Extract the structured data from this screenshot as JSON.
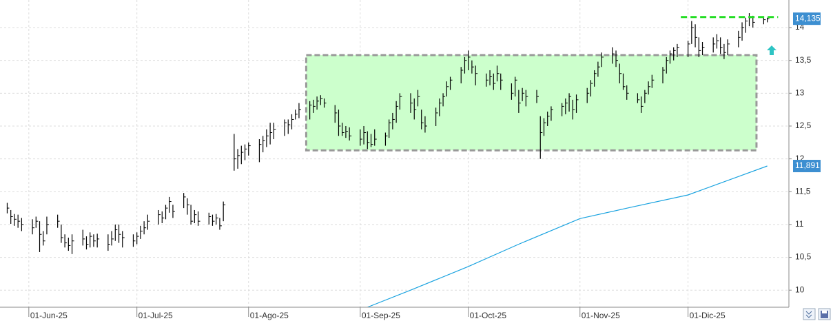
{
  "chart_data": {
    "type": "ohlc",
    "color": "#000000",
    "x": [
      "2025-05-26",
      "2025-05-27",
      "2025-05-28",
      "2025-05-29",
      "2025-05-30",
      "2025-06-02",
      "2025-06-03",
      "2025-06-04",
      "2025-06-05",
      "2025-06-06",
      "2025-06-09",
      "2025-06-10",
      "2025-06-11",
      "2025-06-12",
      "2025-06-13",
      "2025-06-16",
      "2025-06-17",
      "2025-06-18",
      "2025-06-19",
      "2025-06-20",
      "2025-06-23",
      "2025-06-24",
      "2025-06-25",
      "2025-06-26",
      "2025-06-27",
      "2025-06-30",
      "2025-07-01",
      "2025-07-02",
      "2025-07-03",
      "2025-07-04",
      "2025-07-07",
      "2025-07-08",
      "2025-07-09",
      "2025-07-10",
      "2025-07-11",
      "2025-07-14",
      "2025-07-15",
      "2025-07-16",
      "2025-07-17",
      "2025-07-18",
      "2025-07-21",
      "2025-07-22",
      "2025-07-23",
      "2025-07-24",
      "2025-07-25",
      "2025-07-28",
      "2025-07-29",
      "2025-07-30",
      "2025-07-31",
      "2025-08-01",
      "2025-08-04",
      "2025-08-05",
      "2025-08-06",
      "2025-08-07",
      "2025-08-08",
      "2025-08-11",
      "2025-08-12",
      "2025-08-13",
      "2025-08-14",
      "2025-08-15",
      "2025-08-18",
      "2025-08-19",
      "2025-08-20",
      "2025-08-21",
      "2025-08-22",
      "2025-08-25",
      "2025-08-26",
      "2025-08-27",
      "2025-08-28",
      "2025-08-29",
      "2025-09-01",
      "2025-09-02",
      "2025-09-03",
      "2025-09-04",
      "2025-09-05",
      "2025-09-08",
      "2025-09-09",
      "2025-09-10",
      "2025-09-11",
      "2025-09-12",
      "2025-09-15",
      "2025-09-16",
      "2025-09-17",
      "2025-09-18",
      "2025-09-19",
      "2025-09-22",
      "2025-09-23",
      "2025-09-24",
      "2025-09-25",
      "2025-09-26",
      "2025-09-29",
      "2025-09-30",
      "2025-10-01",
      "2025-10-02",
      "2025-10-03",
      "2025-10-06",
      "2025-10-07",
      "2025-10-08",
      "2025-10-09",
      "2025-10-10",
      "2025-10-13",
      "2025-10-14",
      "2025-10-15",
      "2025-10-16",
      "2025-10-17",
      "2025-10-20",
      "2025-10-21",
      "2025-10-22",
      "2025-10-23",
      "2025-10-24",
      "2025-10-27",
      "2025-10-28",
      "2025-10-29",
      "2025-10-30",
      "2025-10-31",
      "2025-11-03",
      "2025-11-04",
      "2025-11-05",
      "2025-11-06",
      "2025-11-07",
      "2025-11-10",
      "2025-11-11",
      "2025-11-12",
      "2025-11-13",
      "2025-11-14",
      "2025-11-17",
      "2025-11-18",
      "2025-11-19",
      "2025-11-20",
      "2025-11-21",
      "2025-11-24",
      "2025-11-25",
      "2025-11-26",
      "2025-11-27",
      "2025-11-28",
      "2025-12-01",
      "2025-12-02",
      "2025-12-03",
      "2025-12-04",
      "2025-12-05",
      "2025-12-08",
      "2025-12-09",
      "2025-12-10",
      "2025-12-11",
      "2025-12-12",
      "2025-12-15",
      "2025-12-16",
      "2025-12-17",
      "2025-12-18",
      "2025-12-19",
      "2025-12-22",
      "2025-12-23"
    ],
    "high": [
      11.33,
      11.22,
      11.16,
      11.15,
      11.1,
      11.08,
      11.12,
      11.05,
      10.9,
      11.12,
      11.15,
      11.0,
      10.85,
      10.8,
      10.85,
      10.92,
      10.82,
      10.88,
      10.85,
      10.86,
      10.85,
      10.9,
      11.0,
      11.0,
      10.9,
      10.85,
      10.88,
      10.98,
      11.05,
      11.15,
      11.22,
      11.2,
      11.3,
      11.42,
      11.3,
      11.48,
      11.4,
      11.3,
      11.22,
      11.2,
      11.18,
      11.15,
      11.16,
      11.1,
      11.35,
      12.38,
      12.15,
      12.2,
      12.22,
      12.25,
      12.3,
      12.35,
      12.45,
      12.55,
      12.55,
      12.6,
      12.6,
      12.68,
      12.75,
      12.85,
      12.88,
      12.9,
      12.95,
      12.97,
      12.92,
      12.82,
      12.75,
      12.55,
      12.5,
      12.48,
      12.45,
      12.5,
      12.42,
      12.38,
      12.45,
      12.4,
      12.6,
      12.7,
      12.88,
      13.0,
      13.0,
      12.92,
      13.05,
      12.75,
      12.65,
      12.78,
      12.92,
      13.0,
      13.18,
      13.25,
      13.4,
      13.55,
      13.65,
      13.5,
      13.42,
      13.3,
      13.35,
      13.3,
      13.42,
      13.3,
      13.15,
      13.25,
      13.05,
      13.08,
      13.05,
      13.05,
      12.65,
      12.62,
      12.72,
      12.8,
      12.85,
      12.92,
      13.0,
      12.9,
      12.98,
      13.08,
      13.2,
      13.35,
      13.48,
      13.62,
      13.7,
      13.65,
      13.45,
      13.3,
      13.12,
      13.0,
      12.95,
      13.05,
      13.18,
      13.28,
      13.4,
      13.55,
      13.65,
      13.7,
      13.75,
      13.8,
      14.1,
      14.05,
      13.85,
      13.78,
      13.85,
      13.9,
      13.85,
      13.75,
      13.82,
      13.95,
      14.08,
      14.15,
      14.22,
      14.18,
      14.16,
      14.15
    ],
    "low": [
      11.17,
      11.01,
      10.98,
      10.95,
      10.9,
      10.85,
      10.95,
      10.58,
      10.68,
      10.85,
      10.95,
      10.72,
      10.65,
      10.6,
      10.55,
      10.68,
      10.62,
      10.65,
      10.66,
      10.65,
      10.6,
      10.68,
      10.75,
      10.72,
      10.65,
      10.66,
      10.7,
      10.78,
      10.85,
      10.92,
      11.0,
      11.02,
      11.08,
      11.18,
      11.1,
      11.25,
      11.15,
      11.0,
      11.02,
      10.98,
      11.0,
      10.98,
      11.0,
      10.92,
      11.05,
      11.82,
      11.85,
      11.92,
      11.98,
      12.05,
      11.95,
      12.1,
      12.18,
      12.22,
      12.3,
      12.35,
      12.38,
      12.45,
      12.6,
      12.62,
      12.6,
      12.7,
      12.75,
      12.82,
      12.78,
      12.55,
      12.35,
      12.35,
      12.32,
      12.28,
      12.2,
      12.22,
      12.15,
      12.18,
      12.2,
      12.2,
      12.32,
      12.45,
      12.55,
      12.75,
      12.7,
      12.6,
      12.8,
      12.45,
      12.4,
      12.5,
      12.65,
      12.8,
      12.95,
      13.05,
      13.15,
      13.3,
      13.35,
      13.3,
      13.12,
      13.1,
      13.12,
      13.05,
      13.18,
      13.05,
      12.9,
      12.95,
      12.7,
      12.88,
      12.8,
      12.85,
      12.0,
      12.35,
      12.5,
      12.58,
      12.65,
      12.68,
      12.72,
      12.6,
      12.7,
      12.85,
      12.95,
      13.1,
      13.25,
      13.4,
      13.45,
      13.4,
      13.15,
      13.05,
      12.9,
      12.85,
      12.7,
      12.85,
      12.98,
      13.08,
      13.15,
      13.3,
      13.45,
      13.5,
      13.55,
      13.55,
      13.75,
      13.7,
      13.55,
      13.58,
      13.62,
      13.68,
      13.6,
      13.52,
      13.58,
      13.7,
      13.8,
      13.92,
      14.02,
      14.0,
      14.05,
      14.08
    ],
    "close": [
      11.25,
      11.12,
      11.08,
      11.05,
      11.0,
      10.95,
      11.05,
      10.85,
      10.75,
      11.0,
      11.05,
      10.8,
      10.72,
      10.68,
      10.75,
      10.78,
      10.7,
      10.82,
      10.75,
      10.78,
      10.7,
      10.78,
      10.92,
      10.85,
      10.8,
      10.75,
      10.82,
      10.9,
      10.95,
      11.05,
      11.15,
      11.1,
      11.25,
      11.35,
      11.2,
      11.42,
      11.3,
      11.05,
      11.15,
      11.05,
      11.12,
      11.05,
      11.1,
      10.98,
      11.3,
      12.0,
      12.05,
      12.1,
      12.15,
      12.2,
      12.22,
      12.28,
      12.35,
      12.4,
      12.45,
      12.55,
      12.52,
      12.6,
      12.68,
      12.75,
      12.82,
      12.8,
      12.88,
      12.92,
      12.85,
      12.7,
      12.5,
      12.4,
      12.42,
      12.35,
      12.3,
      12.4,
      12.25,
      12.22,
      12.3,
      12.35,
      12.55,
      12.6,
      12.8,
      12.95,
      12.85,
      12.75,
      12.95,
      12.55,
      12.5,
      12.7,
      12.85,
      12.95,
      13.1,
      13.2,
      13.35,
      13.5,
      13.55,
      13.4,
      13.3,
      13.2,
      13.25,
      13.15,
      13.3,
      13.2,
      13.0,
      13.2,
      12.85,
      13.0,
      12.95,
      12.95,
      12.4,
      12.55,
      12.65,
      12.75,
      12.8,
      12.85,
      12.95,
      12.75,
      12.9,
      13.0,
      13.15,
      13.3,
      13.4,
      13.55,
      13.6,
      13.5,
      13.3,
      13.1,
      13.0,
      12.9,
      12.8,
      13.0,
      13.1,
      13.2,
      13.35,
      13.5,
      13.6,
      13.65,
      13.7,
      13.75,
      14.0,
      13.85,
      13.65,
      13.7,
      13.75,
      13.8,
      13.7,
      13.62,
      13.75,
      13.85,
      14.0,
      14.1,
      14.15,
      14.08,
      14.12,
      14.135
    ],
    "close_label": "14,135",
    "moving_average": {
      "color": "#1aa3e0",
      "x": [
        "2025-09-03",
        "2025-09-15",
        "2025-10-01",
        "2025-10-15",
        "2025-11-01",
        "2025-11-15",
        "2025-12-01",
        "2025-12-23"
      ],
      "values": [
        9.74,
        10.0,
        10.36,
        10.7,
        11.09,
        11.26,
        11.45,
        11.891
      ],
      "last_label": "11,891"
    },
    "resistance": {
      "value": 14.16,
      "x": [
        "2025-11-29",
        "2025-12-26"
      ],
      "color": "#22dd22"
    },
    "range_box": {
      "x": [
        "2025-08-17",
        "2025-12-20"
      ],
      "y": [
        12.13,
        13.58
      ],
      "color": "#ccffcc"
    },
    "xlim": [
      "2025-05-24",
      "2025-12-29"
    ],
    "xticks": [
      {
        "value": "2025-06-01",
        "label": "01-Jun-25"
      },
      {
        "value": "2025-07-01",
        "label": "01-Jul-25"
      },
      {
        "value": "2025-08-01",
        "label": "01-Ago-25"
      },
      {
        "value": "2025-09-01",
        "label": "01-Sep-25"
      },
      {
        "value": "2025-10-01",
        "label": "01-Oct-25"
      },
      {
        "value": "2025-11-01",
        "label": "01-Nov-25"
      },
      {
        "value": "2025-12-01",
        "label": "01-Dic-25"
      }
    ],
    "ylim": [
      9.74,
      14.42
    ],
    "yticks": [
      10,
      {
        "value": 10.5,
        "label": "10,5"
      },
      11,
      {
        "value": 11.5,
        "label": "11,5"
      },
      12,
      {
        "value": 12.5,
        "label": "12,5"
      },
      13,
      {
        "value": 13.5,
        "label": "13,5"
      },
      14
    ],
    "grid": true
  }
}
